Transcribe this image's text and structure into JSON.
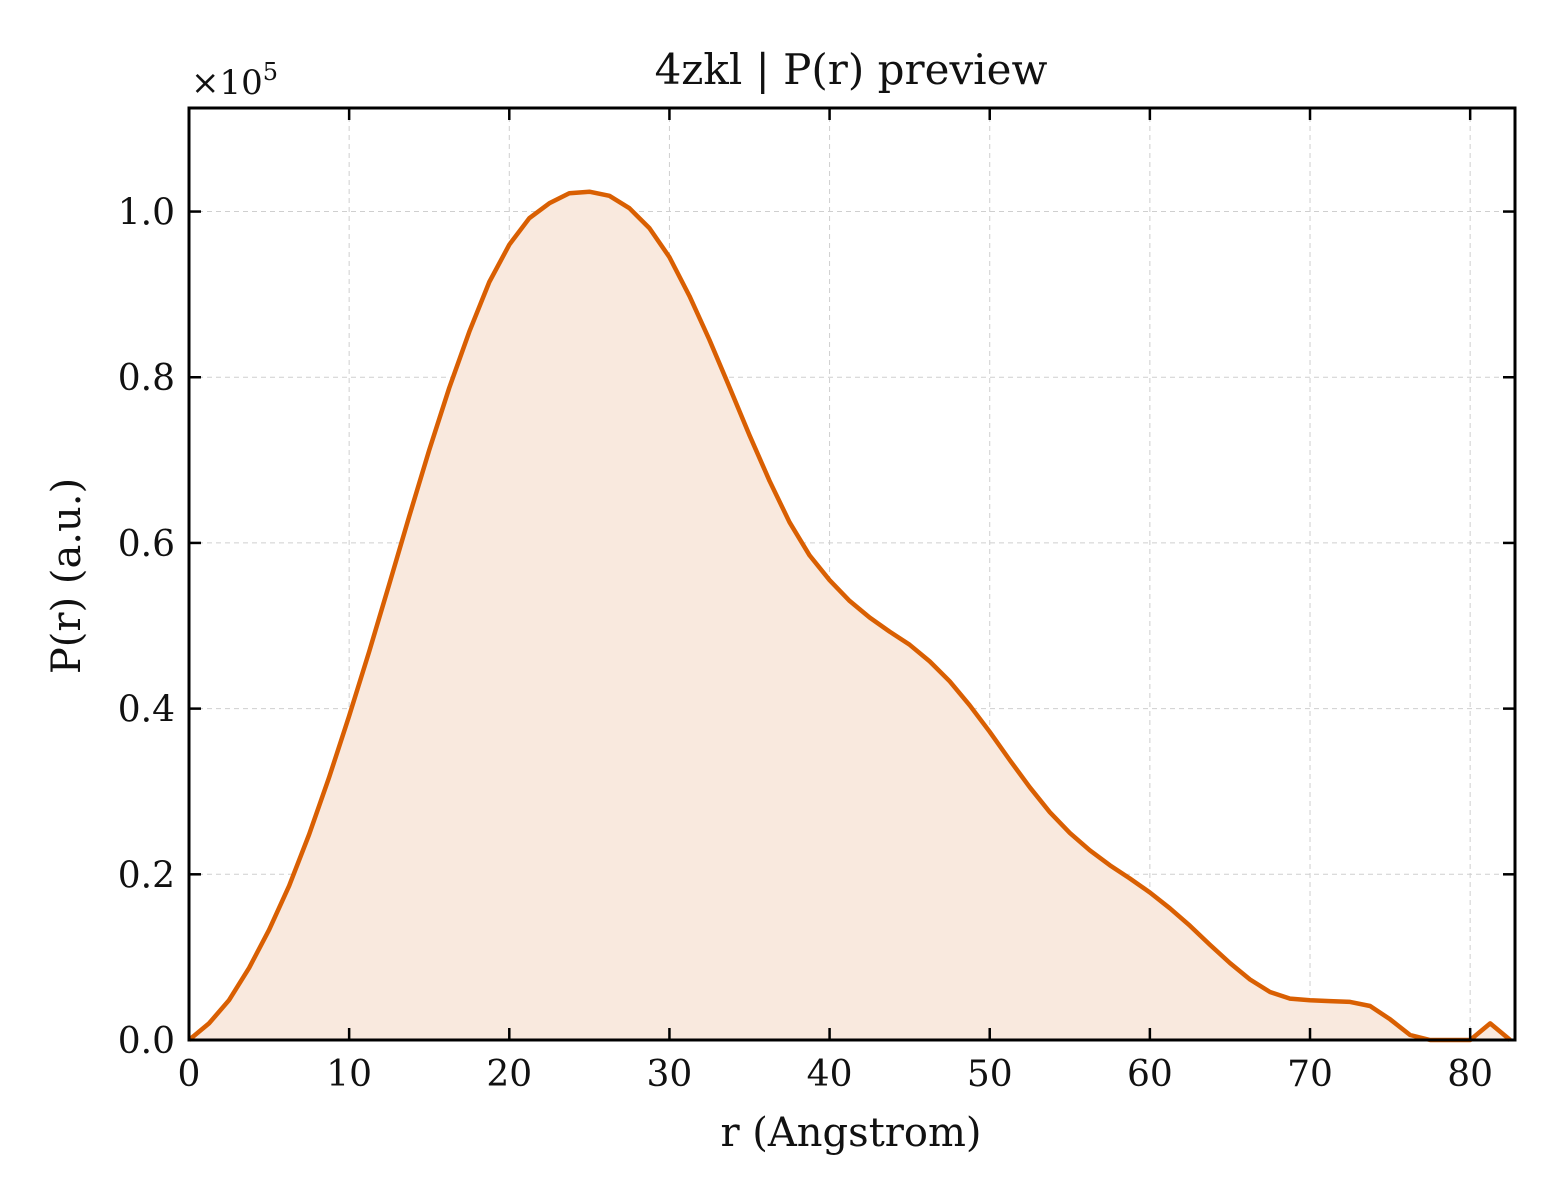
{
  "chart_data": {
    "type": "area",
    "title": "4zkl | P(r) preview",
    "xlabel": "r (Angstrom)",
    "ylabel": "P(r) (a.u.)",
    "y_multiplier": "×10",
    "y_multiplier_exponent": "5",
    "xlim": [
      0,
      82.8
    ],
    "ylim": [
      0,
      1.125
    ],
    "xticks": [
      0,
      10,
      20,
      30,
      40,
      50,
      60,
      70,
      80
    ],
    "xtick_labels": [
      "0",
      "10",
      "20",
      "30",
      "40",
      "50",
      "60",
      "70",
      "80"
    ],
    "yticks": [
      0,
      0.2,
      0.4,
      0.6,
      0.8,
      1.0
    ],
    "ytick_labels": [
      "0.0",
      "0.2",
      "0.4",
      "0.6",
      "0.8",
      "1.0"
    ],
    "grid": true,
    "legend": "none",
    "colors": {
      "line": "#d95f02",
      "fill": "#f9e9de",
      "grid": "#cfcfcf",
      "axes": "#000000"
    },
    "series": [
      {
        "x": [
          0,
          1.25,
          2.5,
          3.75,
          5,
          6.25,
          7.5,
          8.75,
          10,
          11.25,
          12.5,
          13.75,
          15,
          16.25,
          17.5,
          18.75,
          20,
          21.25,
          22.5,
          23.75,
          25,
          26.25,
          27.5,
          28.75,
          30,
          31.25,
          32.5,
          33.75,
          35,
          36.25,
          37.5,
          38.75,
          40,
          41.25,
          42.5,
          43.75,
          45,
          46.25,
          47.5,
          48.75,
          50,
          51.25,
          52.5,
          53.75,
          55,
          56.25,
          57.5,
          58.75,
          60,
          61.25,
          62.5,
          63.75,
          65,
          66.25,
          67.5,
          68.75,
          70,
          71.25,
          72.5,
          73.75,
          75,
          76.25,
          77.5,
          78.75,
          80,
          81.25,
          82.5
        ],
        "values": [
          0.0,
          0.02,
          0.048,
          0.087,
          0.133,
          0.186,
          0.248,
          0.317,
          0.391,
          0.469,
          0.55,
          0.632,
          0.712,
          0.787,
          0.855,
          0.915,
          0.96,
          0.992,
          1.01,
          1.022,
          1.024,
          1.019,
          1.004,
          0.98,
          0.945,
          0.898,
          0.845,
          0.788,
          0.73,
          0.675,
          0.625,
          0.585,
          0.555,
          0.53,
          0.51,
          0.493,
          0.477,
          0.457,
          0.433,
          0.404,
          0.372,
          0.338,
          0.305,
          0.275,
          0.25,
          0.229,
          0.211,
          0.195,
          0.178,
          0.159,
          0.138,
          0.115,
          0.093,
          0.073,
          0.058,
          0.05,
          0.048,
          0.047,
          0.046,
          0.041,
          0.025,
          0.006,
          0.0,
          0.0,
          0.0,
          0.02,
          0.0
        ]
      }
    ]
  }
}
